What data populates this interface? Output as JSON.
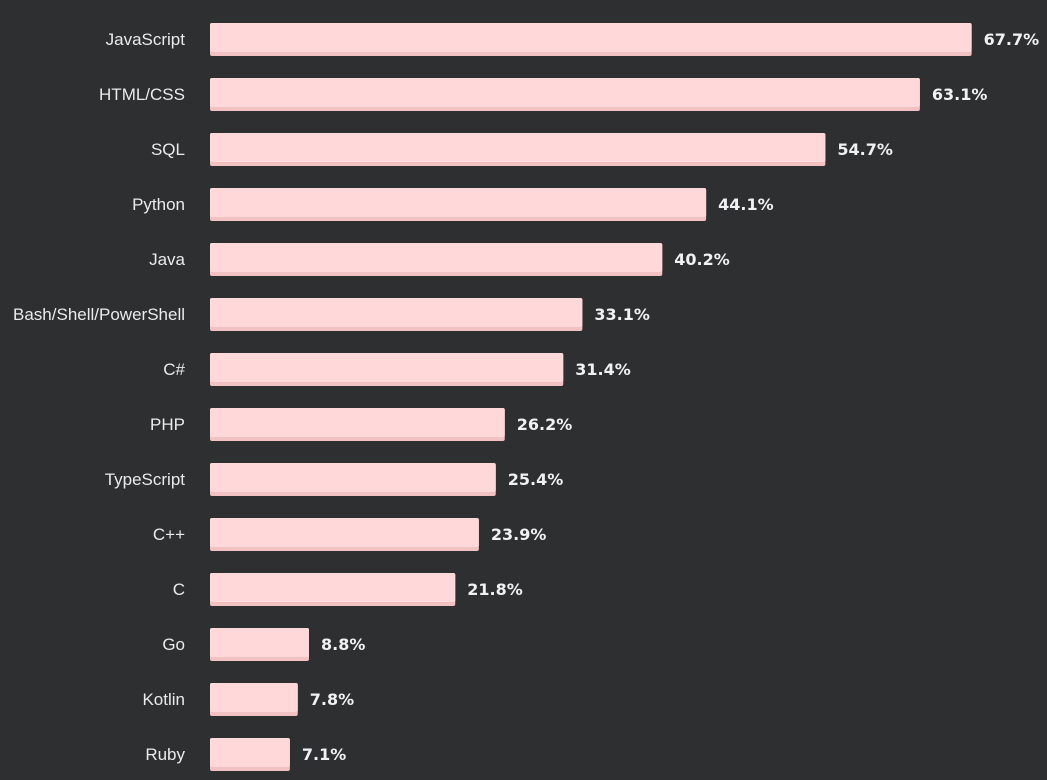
{
  "chart_data": {
    "type": "bar",
    "orientation": "horizontal",
    "categories": [
      "JavaScript",
      "HTML/CSS",
      "SQL",
      "Python",
      "Java",
      "Bash/Shell/PowerShell",
      "C#",
      "PHP",
      "TypeScript",
      "C++",
      "C",
      "Go",
      "Kotlin",
      "Ruby"
    ],
    "values": [
      67.7,
      63.1,
      54.7,
      44.1,
      40.2,
      33.1,
      31.4,
      26.2,
      25.4,
      23.9,
      21.8,
      8.8,
      7.8,
      7.1
    ],
    "value_labels": [
      "67.7%",
      "63.1%",
      "54.7%",
      "44.1%",
      "40.2%",
      "33.1%",
      "31.4%",
      "26.2%",
      "25.4%",
      "23.9%",
      "21.8%",
      "8.8%",
      "7.8%",
      "7.1%"
    ],
    "value_suffix": "%",
    "title": "",
    "xlabel": "",
    "ylabel": "",
    "grid": false,
    "legend": "none",
    "colors": {
      "background": "#2d2f31",
      "bar": "#ffd9d9",
      "bar_shadow": "#f2c2c2",
      "category_text": "#e9ebec",
      "value_text": "#f0f1f2"
    }
  }
}
